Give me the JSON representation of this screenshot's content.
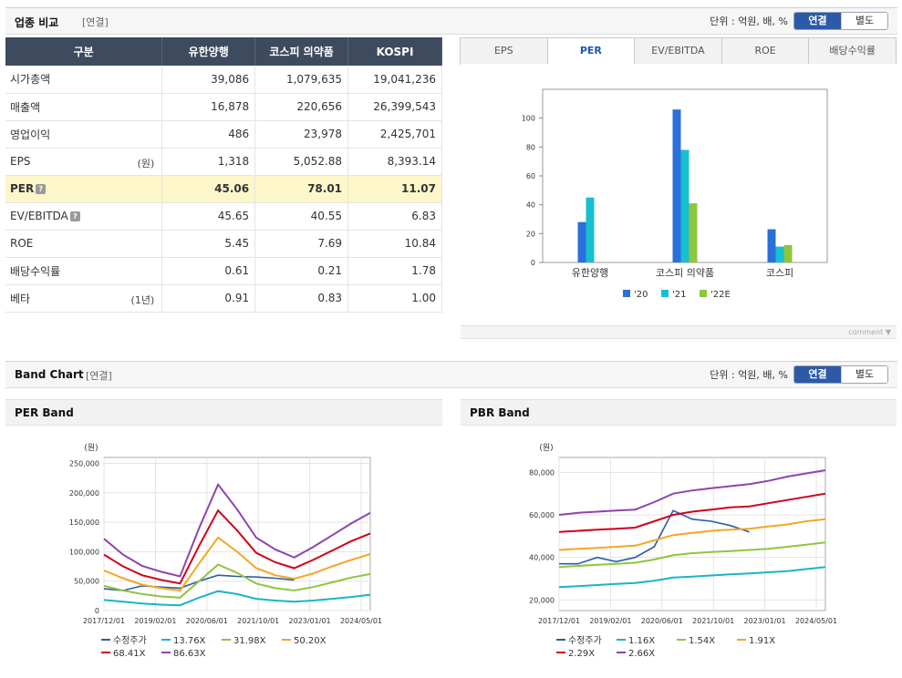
{
  "industry": {
    "title": "업종 비교",
    "basis": "[연결]",
    "unit": "단위 : 억원, 배, %",
    "toggle_on": "연결",
    "toggle_off": "별도"
  },
  "table": {
    "headers": [
      "구분",
      "유한양행",
      "코스피 의약품",
      "KOSPI"
    ],
    "rows": [
      {
        "label": "시가총액",
        "suffix": "",
        "help": false,
        "values": [
          "39,086",
          "1,079,635",
          "19,041,236"
        ]
      },
      {
        "label": "매출액",
        "suffix": "",
        "help": false,
        "values": [
          "16,878",
          "220,656",
          "26,399,543"
        ]
      },
      {
        "label": "영업이익",
        "suffix": "",
        "help": false,
        "values": [
          "486",
          "23,978",
          "2,425,701"
        ]
      },
      {
        "label": "EPS",
        "suffix": "(원)",
        "help": false,
        "values": [
          "1,318",
          "5,052.88",
          "8,393.14"
        ]
      },
      {
        "label": "PER",
        "suffix": "",
        "help": true,
        "values": [
          "45.06",
          "78.01",
          "11.07"
        ]
      },
      {
        "label": "EV/EBITDA",
        "suffix": "",
        "help": true,
        "values": [
          "45.65",
          "40.55",
          "6.83"
        ]
      },
      {
        "label": "ROE",
        "suffix": "",
        "help": false,
        "values": [
          "5.45",
          "7.69",
          "10.84"
        ]
      },
      {
        "label": "배당수익률",
        "suffix": "",
        "help": false,
        "values": [
          "0.61",
          "0.21",
          "1.78"
        ]
      },
      {
        "label": "베타",
        "suffix": "(1년)",
        "help": false,
        "values": [
          "0.91",
          "0.83",
          "1.00"
        ]
      }
    ]
  },
  "tabs": [
    "EPS",
    "PER",
    "EV/EBITDA",
    "ROE",
    "배당수익률"
  ],
  "active_tab": "PER",
  "comment_label": "comment ▼",
  "band": {
    "title": "Band Chart",
    "basis": "[연결]",
    "unit": "단위 : 억원, 배, %",
    "toggle_on": "연결",
    "toggle_off": "별도",
    "per_title": "PER Band",
    "pbr_title": "PBR Band"
  },
  "chart_data": [
    {
      "type": "bar",
      "categories": [
        "유한양행",
        "코스피 의약품",
        "코스피"
      ],
      "series": [
        {
          "name": "'20",
          "color": "#2a6fdb",
          "values": [
            28,
            106,
            23
          ]
        },
        {
          "name": "'21",
          "color": "#17bfd1",
          "values": [
            45,
            78,
            11
          ]
        },
        {
          "name": "'22E",
          "color": "#8dc63f",
          "values": [
            null,
            41,
            12
          ]
        }
      ],
      "ylim": [
        0,
        120
      ],
      "yticks": [
        0,
        20,
        40,
        60,
        80,
        100
      ],
      "legend": "bottom"
    },
    {
      "type": "line",
      "ylabel": "(원)",
      "x_ticks": [
        "2017/12/01",
        "2019/02/01",
        "2020/06/01",
        "2021/10/01",
        "2023/01/01",
        "2024/05/01"
      ],
      "yticks": [
        "0",
        "50,000",
        "100,000",
        "150,000",
        "200,000",
        "250,000"
      ],
      "ylim": [
        0,
        260000
      ],
      "x": [
        "2017/12",
        "2018/06",
        "2019/01",
        "2019/06",
        "2019/12",
        "2020/06",
        "2020/12",
        "2021/06",
        "2021/12",
        "2022/06",
        "2023/01",
        "2023/06",
        "2024/01",
        "2024/07",
        "2025/01"
      ],
      "series": [
        {
          "name": "수정주가",
          "color": "#2a5caa",
          "values": [
            37000,
            34000,
            42000,
            40000,
            38000,
            50000,
            60000,
            58000,
            57000,
            55000,
            52000,
            null,
            null,
            null,
            null
          ]
        },
        {
          "name": "13.76X",
          "color": "#17b5c9",
          "values": [
            18000,
            15000,
            12000,
            10000,
            9000,
            22000,
            33000,
            28000,
            20000,
            17000,
            15000,
            17000,
            20000,
            23000,
            27000
          ]
        },
        {
          "name": "31.98X",
          "color": "#8dc63f",
          "values": [
            42000,
            34000,
            28000,
            24000,
            22000,
            50000,
            78000,
            64000,
            46000,
            38000,
            34000,
            40000,
            48000,
            56000,
            62000
          ]
        },
        {
          "name": "50.20X",
          "color": "#f5a623",
          "values": [
            68000,
            55000,
            44000,
            38000,
            34000,
            80000,
            124000,
            100000,
            72000,
            60000,
            54000,
            63000,
            75000,
            86000,
            96000
          ]
        },
        {
          "name": "68.41X",
          "color": "#d0021b",
          "values": [
            95000,
            75000,
            60000,
            52000,
            46000,
            110000,
            170000,
            136000,
            98000,
            82000,
            72000,
            86000,
            102000,
            118000,
            131000
          ]
        },
        {
          "name": "86.63X",
          "color": "#8e44ad",
          "values": [
            122000,
            95000,
            76000,
            66000,
            58000,
            140000,
            214000,
            172000,
            124000,
            104000,
            90000,
            108000,
            128000,
            148000,
            166000
          ]
        }
      ],
      "legend": "bottom"
    },
    {
      "type": "line",
      "ylabel": "(원)",
      "x_ticks": [
        "2017/12/01",
        "2019/02/01",
        "2020/06/01",
        "2021/10/01",
        "2023/01/01",
        "2024/05/01"
      ],
      "yticks": [
        "20,000",
        "40,000",
        "60,000",
        "80,000"
      ],
      "ylim": [
        15000,
        87000
      ],
      "x": [
        "2017/12",
        "2018/06",
        "2019/01",
        "2019/06",
        "2019/12",
        "2020/06",
        "2020/12",
        "2021/06",
        "2021/12",
        "2022/06",
        "2023/01",
        "2023/06",
        "2024/01",
        "2024/07",
        "2025/01"
      ],
      "series": [
        {
          "name": "수정주가",
          "color": "#2a5caa",
          "values": [
            37000,
            37000,
            40000,
            38000,
            40000,
            45000,
            62000,
            58000,
            57000,
            55000,
            52000,
            null,
            null,
            null,
            null
          ]
        },
        {
          "name": "1.16X",
          "color": "#17b5c9",
          "values": [
            26000,
            26500,
            27000,
            27500,
            28000,
            29000,
            30500,
            31000,
            31500,
            32000,
            32500,
            33000,
            33500,
            34500,
            35500
          ]
        },
        {
          "name": "1.54X",
          "color": "#8dc63f",
          "values": [
            35500,
            36000,
            36500,
            37000,
            37500,
            39000,
            41000,
            42000,
            42500,
            43000,
            43500,
            44000,
            45000,
            46000,
            47000
          ]
        },
        {
          "name": "1.91X",
          "color": "#f5a623",
          "values": [
            43500,
            44000,
            44500,
            45000,
            45500,
            48000,
            50500,
            51500,
            52500,
            53000,
            53500,
            54500,
            55500,
            57000,
            58000
          ]
        },
        {
          "name": "2.29X",
          "color": "#d0021b",
          "values": [
            52000,
            52500,
            53000,
            53500,
            54000,
            57000,
            60000,
            61500,
            62500,
            63500,
            64000,
            65500,
            67000,
            68500,
            70000
          ]
        },
        {
          "name": "2.66X",
          "color": "#8e44ad",
          "values": [
            60000,
            61000,
            61500,
            62000,
            62500,
            66000,
            70000,
            71500,
            72500,
            73500,
            74500,
            76000,
            78000,
            79500,
            81000
          ]
        }
      ],
      "legend": "bottom"
    }
  ]
}
